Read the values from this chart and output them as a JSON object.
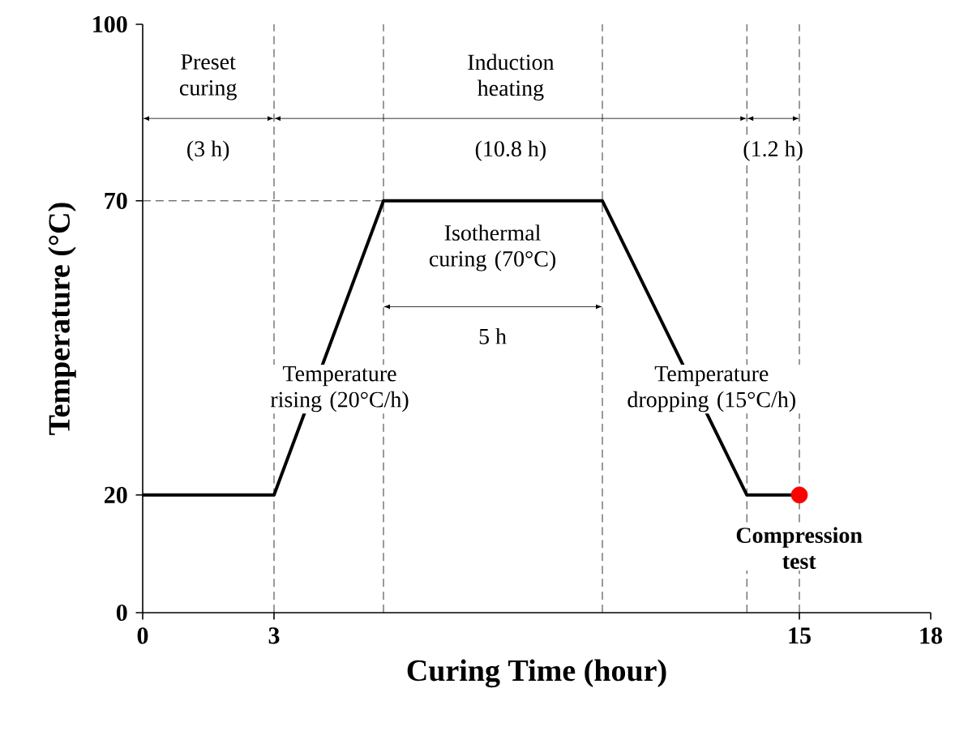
{
  "chart_data": {
    "type": "line",
    "xlabel": "Curing Time (hour)",
    "ylabel": "Temperature (°C)",
    "xlim": [
      0,
      18
    ],
    "ylim": [
      0,
      100
    ],
    "xticks": [
      0,
      3,
      15,
      18
    ],
    "yticks": [
      0,
      20,
      70,
      100
    ],
    "grid": false,
    "series": [
      {
        "color": "#000000",
        "x": [
          0,
          3,
          5.5,
          10.5,
          13.8,
          15
        ],
        "values": [
          20,
          20,
          70,
          70,
          20,
          20
        ],
        "marker": "none",
        "line_style": "solid"
      },
      {
        "type": "scatter",
        "color": "#ff0000",
        "x": [
          15
        ],
        "values": [
          20
        ],
        "marker": "circle"
      }
    ],
    "ref_lines": [
      {
        "axis": "x",
        "value": 3,
        "line_style": "dashed"
      },
      {
        "axis": "x",
        "value": 5.5,
        "line_style": "dashed"
      },
      {
        "axis": "x",
        "value": 10.5,
        "line_style": "dashed"
      },
      {
        "axis": "x",
        "value": 13.8,
        "line_style": "dashed"
      },
      {
        "axis": "x",
        "value": 15,
        "line_style": "dashed"
      },
      {
        "axis": "y",
        "value": 70,
        "line_style": "dashed"
      }
    ],
    "annotations": [
      "Preset curing",
      "(3 h)",
      "Induction heating",
      "(10.8 h)",
      "(1.2 h)",
      "Isothermal curing (70°C)",
      "5 h",
      "Temperature rising (20°C/h)",
      "Temperature dropping (15°C/h)",
      "Compression test"
    ]
  }
}
